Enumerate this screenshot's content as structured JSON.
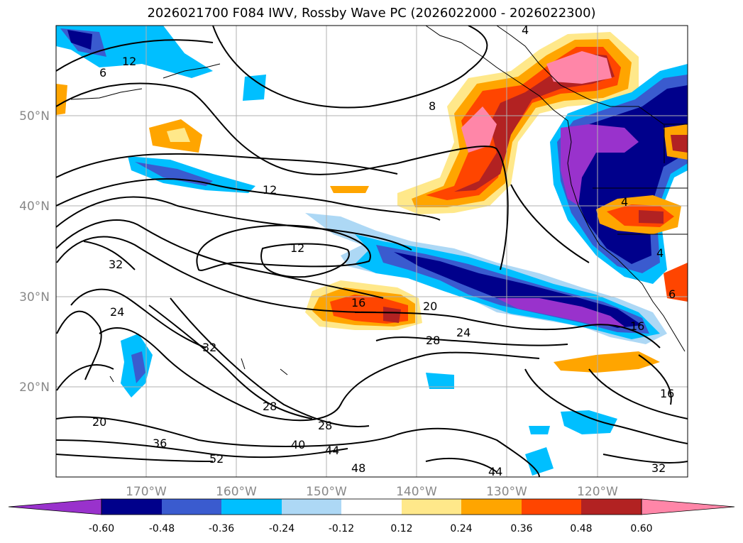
{
  "title": "2026021700 F084 IWV, Rossby Wave PC (2026022000 - 2026022300)",
  "lat_labels": [
    "50°N",
    "40°N",
    "30°N",
    "20°N"
  ],
  "lon_labels": [
    "170°W",
    "160°W",
    "150°W",
    "140°W",
    "130°W",
    "120°W"
  ],
  "contour_labels": [
    "4",
    "4",
    "4",
    "6",
    "8",
    "12",
    "12",
    "12",
    "16",
    "16",
    "16",
    "20",
    "20",
    "24",
    "24",
    "28",
    "28",
    "28",
    "32",
    "32",
    "32",
    "36",
    "40",
    "44",
    "44",
    "48",
    "52",
    "6"
  ],
  "colorbar": {
    "ticks": [
      "-0.60",
      "-0.48",
      "-0.36",
      "-0.24",
      "-0.12",
      "0.12",
      "0.24",
      "0.36",
      "0.48",
      "0.60"
    ],
    "colors": [
      "#9932cc",
      "#00008b",
      "#3a5bcf",
      "#00bfff",
      "#add8f5",
      "#ffffff",
      "#ffe88a",
      "#ffa500",
      "#ff4500",
      "#b22222",
      "#ff86a8",
      "#ff86a8"
    ]
  }
}
